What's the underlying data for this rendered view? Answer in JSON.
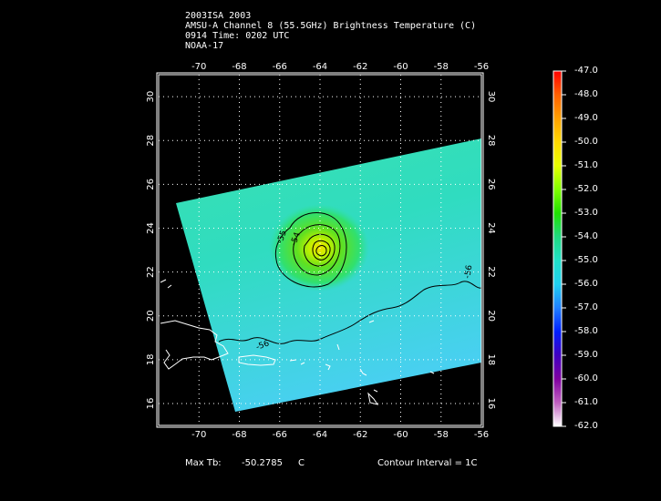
{
  "header": {
    "line1": "2003ISA 2003",
    "line2": "AMSU-A Channel 8 (55.5GHz) Brightness Temperature (C)",
    "line3": "0914 Time: 0202 UTC",
    "line4": "NOAA-17"
  },
  "map": {
    "lon_range": [
      -72,
      -56
    ],
    "lat_range": [
      15,
      31
    ],
    "lon_ticks": [
      "-70",
      "-68",
      "-66",
      "-64",
      "-62",
      "-60",
      "-58",
      "-56"
    ],
    "lat_ticks": [
      "30",
      "28",
      "26",
      "24",
      "22",
      "20",
      "18",
      "16"
    ],
    "grid": "dotted",
    "contour_labels": [
      "-55",
      "-54",
      "-56",
      "-56"
    ],
    "colors": {
      "background": "#000000",
      "swath_low": "#40d8e8",
      "swath_mid": "#38e0a8",
      "core": "#f0e000"
    }
  },
  "colorbar": {
    "labels": [
      "-47.0",
      "-48.0",
      "-49.0",
      "-50.0",
      "-51.0",
      "-52.0",
      "-53.0",
      "-54.0",
      "-55.0",
      "-56.0",
      "-57.0",
      "-58.0",
      "-59.0",
      "-60.0",
      "-61.0",
      "-62.0"
    ],
    "colors": [
      "#ff0000",
      "#ff6000",
      "#ffa000",
      "#ffd800",
      "#e8ff00",
      "#80ff00",
      "#20e000",
      "#20d880",
      "#20e0c8",
      "#20d0f0",
      "#2080ff",
      "#0020ff",
      "#4000c0",
      "#8000a0",
      "#c060c0",
      "#ffffff"
    ]
  },
  "footer": {
    "max_label": "Max Tb:",
    "max_value": "-50.2785",
    "max_unit": "C",
    "contour_interval": "Contour Interval = 1C"
  }
}
